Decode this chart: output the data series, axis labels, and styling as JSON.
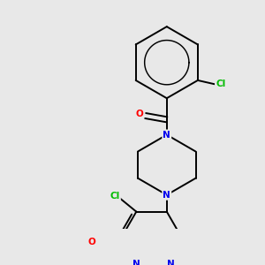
{
  "bg_color": "#e8e8e8",
  "atom_colors": {
    "N": "#0000ee",
    "O": "#ff0000",
    "Cl": "#00bb00",
    "C": "#000000"
  },
  "bond_color": "#000000",
  "bond_width": 1.4,
  "font_size_atom": 7.5,
  "fig_width": 3.0,
  "fig_height": 3.0,
  "dpi": 100
}
